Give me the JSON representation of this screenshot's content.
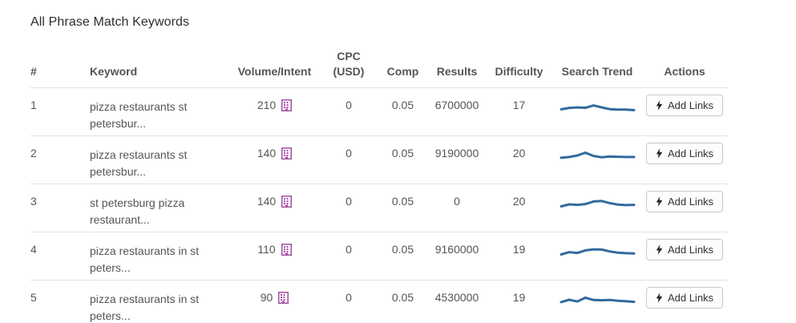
{
  "page": {
    "title": "All Phrase Match Keywords"
  },
  "colors": {
    "trend_line": "#336a9e",
    "volume_icon": "#a34fa3",
    "row_border": "#e2e2e2",
    "header_text": "#555555",
    "button_border": "#c8c8c8"
  },
  "icons": {
    "volume_icon": "building-icon",
    "action_icon": "bolt-icon"
  },
  "table": {
    "headers": [
      "#",
      "Keyword",
      "Volume/Intent",
      "CPC (USD)",
      "Comp",
      "Results",
      "Difficulty",
      "Search Trend",
      "Actions"
    ],
    "action_label": "Add Links",
    "rows": [
      {
        "num": "1",
        "keyword": "pizza restaurants st petersbur...",
        "volume": "210",
        "cpc": "0",
        "comp": "0.05",
        "results": "6700000",
        "difficulty": "17",
        "trend": [
          3.5,
          4.6,
          5.0,
          4.7,
          6.5,
          5.0,
          3.6,
          3.3,
          3.3,
          2.9
        ]
      },
      {
        "num": "2",
        "keyword": "pizza restaurants st petersbur...",
        "volume": "140",
        "cpc": "0",
        "comp": "0.05",
        "results": "9190000",
        "difficulty": "20",
        "trend": [
          3.2,
          3.8,
          5.0,
          7.2,
          4.6,
          3.6,
          4.2,
          4.0,
          3.8,
          3.8
        ]
      },
      {
        "num": "3",
        "keyword": "st petersburg pizza restaurant...",
        "volume": "140",
        "cpc": "0",
        "comp": "0.05",
        "results": "0",
        "difficulty": "20",
        "trend": [
          2.8,
          4.4,
          4.0,
          4.6,
          6.6,
          7.0,
          5.4,
          4.2,
          3.8,
          4.0
        ]
      },
      {
        "num": "4",
        "keyword": "pizza restaurants in st peters...",
        "volume": "110",
        "cpc": "0",
        "comp": "0.05",
        "results": "9160000",
        "difficulty": "19",
        "trend": [
          2.8,
          4.6,
          4.0,
          6.0,
          6.8,
          6.6,
          5.2,
          4.2,
          3.8,
          3.6
        ]
      },
      {
        "num": "5",
        "keyword": "pizza restaurants in st peters...",
        "volume": "90",
        "cpc": "0",
        "comp": "0.05",
        "results": "4530000",
        "difficulty": "19",
        "trend": [
          3.2,
          5.0,
          3.6,
          6.6,
          4.8,
          4.6,
          4.8,
          4.2,
          3.8,
          3.4
        ]
      }
    ]
  }
}
